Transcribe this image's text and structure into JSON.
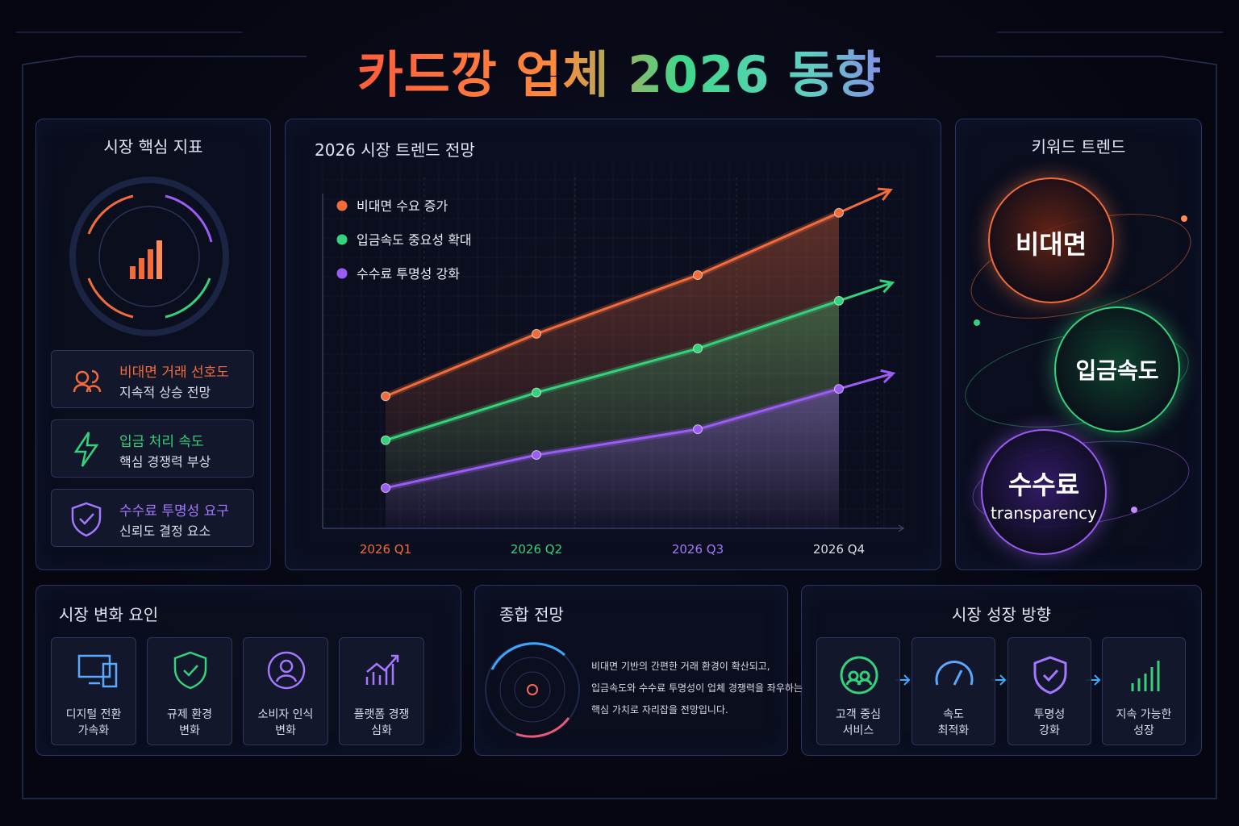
{
  "header": {
    "title": "카드깡 업체 2026 동향"
  },
  "metrics_panel": {
    "title": "시장 핵심 지표",
    "items": [
      {
        "title": "비대면 거래 선호도",
        "subtitle": "지속적 상승 전망"
      },
      {
        "title": "입금 처리 속도",
        "subtitle": "핵심 경쟁력 부상"
      },
      {
        "title": "수수료 투명성 요구",
        "subtitle": "신뢰도 결정 요소"
      }
    ]
  },
  "chart_data": {
    "type": "line",
    "title": "2026 시장 트렌드 전망",
    "categories": [
      "2026 Q1",
      "2026 Q2",
      "2026 Q3",
      "2026 Q4"
    ],
    "series": [
      {
        "name": "비대면 수요 증가",
        "color": "#f26b3a",
        "values": [
          36,
          53,
          69,
          86
        ]
      },
      {
        "name": "입금속도 중요성 확대",
        "color": "#34d27a",
        "values": [
          24,
          37,
          49,
          62
        ]
      },
      {
        "name": "수수료 투명성 강화",
        "color": "#9b5cf6",
        "values": [
          11,
          20,
          27,
          38
        ]
      }
    ],
    "ylim": [
      0,
      100
    ],
    "grid": true
  },
  "keyword_panel": {
    "title": "키워드 트렌드",
    "keywords": [
      {
        "label": "비대면"
      },
      {
        "label": "입금속도"
      },
      {
        "label": "수수료",
        "sub": "transparency"
      }
    ]
  },
  "factors_panel": {
    "title": "시장 변화 요인",
    "items": [
      {
        "lines": [
          "디지털 전환",
          "가속화"
        ]
      },
      {
        "lines": [
          "규제 환경",
          "변화"
        ]
      },
      {
        "lines": [
          "소비자 인식",
          "변화"
        ]
      },
      {
        "lines": [
          "플랫폼 경쟁",
          "심화"
        ]
      }
    ]
  },
  "outlook_panel": {
    "title": "종합 전망",
    "lines": [
      "비대면 기반의 간편한 거래 환경이 확산되고,",
      "입금속도와 수수료 투명성이 업체 경쟁력을 좌우하는",
      "핵심 가치로 자리잡을 전망입니다."
    ]
  },
  "growth_panel": {
    "title": "시장 성장 방향",
    "steps": [
      {
        "lines": [
          "고객 중심",
          "서비스"
        ]
      },
      {
        "lines": [
          "속도",
          "최적화"
        ]
      },
      {
        "lines": [
          "투명성",
          "강화"
        ]
      },
      {
        "lines": [
          "지속 가능한",
          "성장"
        ]
      }
    ]
  }
}
